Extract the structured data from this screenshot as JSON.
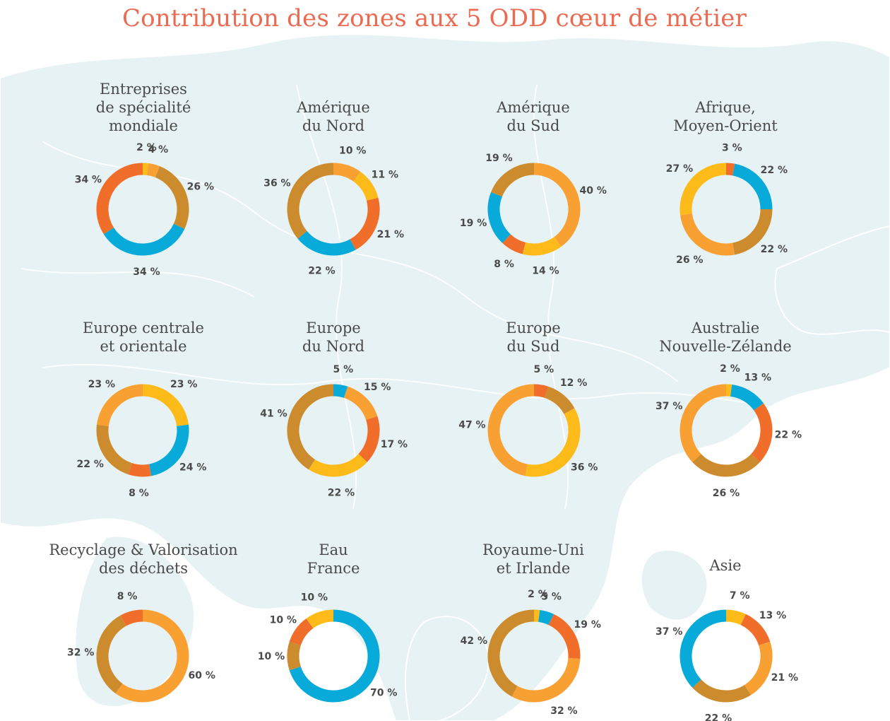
{
  "title": "Contribution des zones aux 5 ODD cœur de métier",
  "colors": {
    "orange_light": "#f9a033",
    "brown": "#cc8b2d",
    "blue": "#07aad8",
    "red_orange": "#f16e2a",
    "yellow": "#fdbb19",
    "title": "#ec6a52",
    "label": "#4a4a4a",
    "map": "#e6f2f3"
  },
  "chart_data": [
    {
      "type": "pie",
      "title": "Entreprises\nde spécialité\nmondiale",
      "slices": [
        {
          "value": 2,
          "label": "2 %",
          "color": "#fdbb19"
        },
        {
          "value": 4,
          "label": "4 %",
          "color": "#f9a033"
        },
        {
          "value": 26,
          "label": "26 %",
          "color": "#cc8b2d"
        },
        {
          "value": 34,
          "label": "34 %",
          "color": "#07aad8"
        },
        {
          "value": 34,
          "label": "34 %",
          "color": "#f16e2a"
        }
      ]
    },
    {
      "type": "pie",
      "title": "Amérique\ndu Nord",
      "slices": [
        {
          "value": 10,
          "label": "10 %",
          "color": "#f9a033"
        },
        {
          "value": 11,
          "label": "11 %",
          "color": "#fdbb19"
        },
        {
          "value": 21,
          "label": "21 %",
          "color": "#f16e2a"
        },
        {
          "value": 22,
          "label": "22 %",
          "color": "#07aad8"
        },
        {
          "value": 36,
          "label": "36 %",
          "color": "#cc8b2d"
        }
      ]
    },
    {
      "type": "pie",
      "title": "Amérique\ndu Sud",
      "slices": [
        {
          "value": 40,
          "label": "40 %",
          "color": "#f9a033"
        },
        {
          "value": 14,
          "label": "14 %",
          "color": "#fdbb19"
        },
        {
          "value": 8,
          "label": "8 %",
          "color": "#f16e2a"
        },
        {
          "value": 19,
          "label": "19 %",
          "color": "#07aad8"
        },
        {
          "value": 19,
          "label": "19 %",
          "color": "#cc8b2d"
        }
      ]
    },
    {
      "type": "pie",
      "title": "Afrique,\nMoyen-Orient",
      "slices": [
        {
          "value": 3,
          "label": "3 %",
          "color": "#f16e2a"
        },
        {
          "value": 22,
          "label": "22 %",
          "color": "#07aad8"
        },
        {
          "value": 22,
          "label": "22 %",
          "color": "#cc8b2d"
        },
        {
          "value": 26,
          "label": "26 %",
          "color": "#f9a033"
        },
        {
          "value": 27,
          "label": "27 %",
          "color": "#fdbb19"
        }
      ]
    },
    {
      "type": "pie",
      "title": "Europe centrale\net orientale",
      "slices": [
        {
          "value": 23,
          "label": "23 %",
          "color": "#fdbb19"
        },
        {
          "value": 24,
          "label": "24 %",
          "color": "#07aad8"
        },
        {
          "value": 8,
          "label": "8 %",
          "color": "#f16e2a"
        },
        {
          "value": 22,
          "label": "22 %",
          "color": "#cc8b2d"
        },
        {
          "value": 23,
          "label": "23 %",
          "color": "#f9a033"
        }
      ]
    },
    {
      "type": "pie",
      "title": "Europe\ndu Nord",
      "slices": [
        {
          "value": 5,
          "label": "5 %",
          "color": "#07aad8"
        },
        {
          "value": 15,
          "label": "15 %",
          "color": "#f9a033"
        },
        {
          "value": 17,
          "label": "17 %",
          "color": "#f16e2a"
        },
        {
          "value": 22,
          "label": "22 %",
          "color": "#fdbb19"
        },
        {
          "value": 41,
          "label": "41 %",
          "color": "#cc8b2d"
        }
      ]
    },
    {
      "type": "pie",
      "title": "Europe\ndu Sud",
      "slices": [
        {
          "value": 5,
          "label": "5 %",
          "color": "#f16e2a"
        },
        {
          "value": 12,
          "label": "12 %",
          "color": "#cc8b2d"
        },
        {
          "value": 36,
          "label": "36 %",
          "color": "#fdbb19"
        },
        {
          "value": 47,
          "label": "47 %",
          "color": "#f9a033"
        }
      ]
    },
    {
      "type": "pie",
      "title": "Australie\nNouvelle-Zélande",
      "slices": [
        {
          "value": 2,
          "label": "2 %",
          "color": "#fdbb19"
        },
        {
          "value": 13,
          "label": "13 %",
          "color": "#07aad8"
        },
        {
          "value": 22,
          "label": "22 %",
          "color": "#f16e2a"
        },
        {
          "value": 26,
          "label": "26 %",
          "color": "#cc8b2d"
        },
        {
          "value": 37,
          "label": "37 %",
          "color": "#f9a033"
        }
      ]
    },
    {
      "type": "pie",
      "title": "Recyclage & Valorisation\ndes déchets",
      "slices": [
        {
          "value": 60,
          "label": "60 %",
          "color": "#f9a033"
        },
        {
          "value": 32,
          "label": "32 %",
          "color": "#cc8b2d"
        },
        {
          "value": 8,
          "label": "8 %",
          "color": "#f16e2a"
        }
      ]
    },
    {
      "type": "pie",
      "title": "Eau\nFrance",
      "slices": [
        {
          "value": 70,
          "label": "70 %",
          "color": "#07aad8"
        },
        {
          "value": 10,
          "label": "10 %",
          "color": "#cc8b2d"
        },
        {
          "value": 10,
          "label": "10 %",
          "color": "#f16e2a"
        },
        {
          "value": 10,
          "label": "10 %",
          "color": "#fdbb19"
        }
      ]
    },
    {
      "type": "pie",
      "title": "Royaume-Uni\net Irlande",
      "slices": [
        {
          "value": 2,
          "label": "2 %",
          "color": "#fdbb19"
        },
        {
          "value": 5,
          "label": "5 %",
          "color": "#07aad8"
        },
        {
          "value": 19,
          "label": "19 %",
          "color": "#f16e2a"
        },
        {
          "value": 32,
          "label": "32 %",
          "color": "#f9a033"
        },
        {
          "value": 42,
          "label": "42 %",
          "color": "#cc8b2d"
        }
      ]
    },
    {
      "type": "pie",
      "title": "Asie",
      "slices": [
        {
          "value": 7,
          "label": "7 %",
          "color": "#fdbb19"
        },
        {
          "value": 13,
          "label": "13 %",
          "color": "#f16e2a"
        },
        {
          "value": 21,
          "label": "21 %",
          "color": "#f9a033"
        },
        {
          "value": 22,
          "label": "22 %",
          "color": "#cc8b2d"
        },
        {
          "value": 37,
          "label": "37 %",
          "color": "#07aad8"
        }
      ]
    }
  ]
}
